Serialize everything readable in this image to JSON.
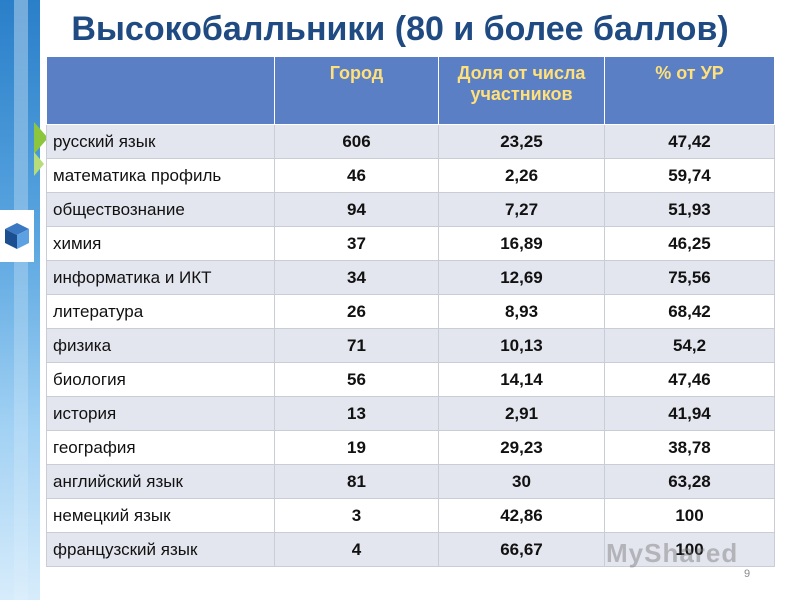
{
  "title": "Высокобалльники (80 и более баллов)",
  "table": {
    "headers": [
      "",
      "Город",
      "Доля от числа участников",
      "% от УР"
    ],
    "rows": [
      [
        "русский язык",
        "606",
        "23,25",
        "47,42"
      ],
      [
        "математика профиль",
        "46",
        "2,26",
        "59,74"
      ],
      [
        "обществознание",
        "94",
        "7,27",
        "51,93"
      ],
      [
        "химия",
        "37",
        "16,89",
        "46,25"
      ],
      [
        "информатика и ИКТ",
        "34",
        "12,69",
        "75,56"
      ],
      [
        "литература",
        "26",
        "8,93",
        "68,42"
      ],
      [
        "физика",
        "71",
        "10,13",
        "54,2"
      ],
      [
        "биология",
        "56",
        "14,14",
        "47,46"
      ],
      [
        "история",
        "13",
        "2,91",
        "41,94"
      ],
      [
        "география",
        "19",
        "29,23",
        "38,78"
      ],
      [
        "английский язык",
        "81",
        "30",
        "63,28"
      ],
      [
        "немецкий язык",
        "3",
        "42,86",
        "100"
      ],
      [
        "французский язык",
        "4",
        "66,67",
        "100"
      ]
    ]
  },
  "watermark": "MyShared",
  "page_number": "9",
  "colors": {
    "title": "#1f4b82",
    "header_bg": "#5a7fc4",
    "header_text": "#ffe07a",
    "row_alt": "#e4e6ef"
  }
}
